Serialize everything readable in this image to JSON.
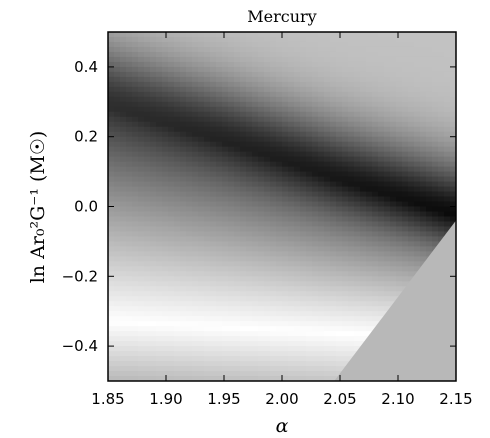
{
  "chart_data": {
    "type": "heatmap",
    "title": "Mercury",
    "xlabel": "α",
    "ylabel": "ln Ar₀²G⁻¹ (M☉)",
    "xlim": [
      1.85,
      2.15
    ],
    "ylim": [
      -0.5,
      0.5
    ],
    "x_ticks": [
      {
        "value": 1.85,
        "label": "1.85"
      },
      {
        "value": 1.9,
        "label": "1.90"
      },
      {
        "value": 1.95,
        "label": "1.95"
      },
      {
        "value": 2.0,
        "label": "2.00"
      },
      {
        "value": 2.05,
        "label": "2.05"
      },
      {
        "value": 2.1,
        "label": "2.10"
      },
      {
        "value": 2.15,
        "label": "2.15"
      }
    ],
    "y_ticks": [
      {
        "value": 0.4,
        "label": "0.4"
      },
      {
        "value": 0.2,
        "label": "0.2"
      },
      {
        "value": 0.0,
        "label": "0.0"
      },
      {
        "value": -0.2,
        "label": "−0.2"
      },
      {
        "value": -0.4,
        "label": "−0.4"
      }
    ],
    "colormap": "grayscale",
    "excluded_region_color": "#b8b8b8",
    "excluded_region": [
      [
        2.045,
        -0.5
      ],
      [
        2.15,
        -0.04
      ],
      [
        2.15,
        -0.5
      ]
    ],
    "dark_ridge": [
      [
        1.85,
        0.28
      ],
      [
        1.95,
        0.18
      ],
      [
        2.05,
        0.07
      ],
      [
        2.15,
        -0.03
      ]
    ],
    "light_band": [
      [
        1.85,
        -0.33
      ],
      [
        2.15,
        -0.38
      ]
    ],
    "grid": false,
    "legend": "none"
  }
}
